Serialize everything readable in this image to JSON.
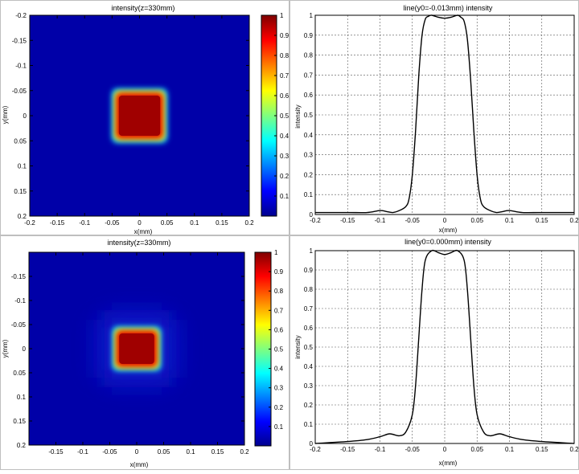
{
  "chart_data": [
    {
      "type": "heatmap",
      "title": "intensity(z=330mm)",
      "xlabel": "x(mm)",
      "ylabel": "y(mm)",
      "xlim": [
        -0.2,
        0.2
      ],
      "ylim": [
        -0.2,
        0.2
      ],
      "y_reversed": true,
      "xticks": [
        "-0.2",
        "-0.15",
        "-0.1",
        "-0.05",
        "0",
        "0.05",
        "0.1",
        "0.15",
        "0.2"
      ],
      "yticks": [
        "-0.2",
        "-0.15",
        "-0.1",
        "-0.05",
        "0",
        "0.05",
        "0.1",
        "0.15",
        "0.2"
      ],
      "square": {
        "x_min": -0.045,
        "x_max": 0.045,
        "y_min": -0.048,
        "y_max": 0.048,
        "value": 1.0
      },
      "background_value": 0.0,
      "colormap": "jet",
      "colorbar_ticks": [
        "0.1",
        "0.2",
        "0.3",
        "0.4",
        "0.5",
        "0.6",
        "0.7",
        "0.8",
        "0.9",
        "1"
      ]
    },
    {
      "type": "line",
      "title": "line(y0=-0.013mm) intensity",
      "xlabel": "x(mm)",
      "ylabel": "intensity",
      "xlim": [
        -0.2,
        0.2
      ],
      "ylim": [
        0,
        1
      ],
      "grid": true,
      "xticks": [
        "-0.2",
        "-0.15",
        "-0.1",
        "-0.05",
        "0",
        "0.05",
        "0.1",
        "0.15",
        "0.2"
      ],
      "yticks": [
        "0",
        "0.1",
        "0.2",
        "0.3",
        "0.4",
        "0.5",
        "0.6",
        "0.7",
        "0.8",
        "0.9",
        "1"
      ],
      "x": [
        -0.2,
        -0.15,
        -0.12,
        -0.1,
        -0.09,
        -0.08,
        -0.07,
        -0.06,
        -0.055,
        -0.05,
        -0.045,
        -0.04,
        -0.035,
        -0.03,
        -0.025,
        -0.02,
        -0.01,
        0,
        0.01,
        0.02,
        0.025,
        0.03,
        0.035,
        0.04,
        0.045,
        0.05,
        0.055,
        0.06,
        0.07,
        0.08,
        0.09,
        0.1,
        0.12,
        0.15,
        0.2
      ],
      "y": [
        0.01,
        0.01,
        0.01,
        0.02,
        0.015,
        0.01,
        0.02,
        0.04,
        0.08,
        0.2,
        0.42,
        0.7,
        0.9,
        0.98,
        0.995,
        1.0,
        0.99,
        0.985,
        0.99,
        1.0,
        0.99,
        0.97,
        0.88,
        0.68,
        0.42,
        0.2,
        0.08,
        0.04,
        0.02,
        0.01,
        0.015,
        0.02,
        0.01,
        0.01,
        0.01
      ]
    },
    {
      "type": "heatmap",
      "title": "intensity(z=330mm)",
      "xlabel": "x(mm)",
      "ylabel": "y(mm)",
      "xlim": [
        -0.2,
        0.2
      ],
      "ylim": [
        -0.2,
        0.2
      ],
      "y_reversed": true,
      "xticks": [
        "-0.15",
        "-0.1",
        "-0.05",
        "0",
        "0.05",
        "0.1",
        "0.15",
        "0.2"
      ],
      "yticks": [
        "-0.15",
        "-0.1",
        "-0.05",
        "0",
        "0.05",
        "0.1",
        "0.15",
        "0.2"
      ],
      "square": {
        "x_min": -0.04,
        "x_max": 0.04,
        "y_min": -0.04,
        "y_max": 0.04,
        "value": 1.0
      },
      "background_value": 0.0,
      "colormap": "jet",
      "colorbar_ticks": [
        "0.1",
        "0.2",
        "0.3",
        "0.4",
        "0.5",
        "0.6",
        "0.7",
        "0.8",
        "0.9",
        "1"
      ]
    },
    {
      "type": "line",
      "title": "line(y0=0.000mm) intensity",
      "xlabel": "x(mm)",
      "ylabel": "intensity",
      "xlim": [
        -0.2,
        0.2
      ],
      "ylim": [
        0,
        1
      ],
      "grid": true,
      "xticks": [
        "-0.2",
        "-0.15",
        "-0.1",
        "-0.05",
        "0",
        "0.05",
        "0.1",
        "0.15",
        "0.2"
      ],
      "yticks": [
        "0",
        "0.1",
        "0.2",
        "0.3",
        "0.4",
        "0.5",
        "0.6",
        "0.7",
        "0.8",
        "0.9",
        "1"
      ],
      "x": [
        -0.2,
        -0.15,
        -0.12,
        -0.1,
        -0.085,
        -0.07,
        -0.06,
        -0.05,
        -0.045,
        -0.04,
        -0.035,
        -0.03,
        -0.02,
        -0.01,
        0,
        0.01,
        0.02,
        0.03,
        0.035,
        0.04,
        0.045,
        0.05,
        0.06,
        0.07,
        0.085,
        0.1,
        0.12,
        0.15,
        0.2
      ],
      "y": [
        0.0,
        0.01,
        0.02,
        0.035,
        0.05,
        0.04,
        0.06,
        0.15,
        0.3,
        0.55,
        0.8,
        0.95,
        1.0,
        0.99,
        0.98,
        0.99,
        1.0,
        0.95,
        0.8,
        0.55,
        0.3,
        0.15,
        0.06,
        0.04,
        0.05,
        0.035,
        0.02,
        0.01,
        0.0
      ]
    }
  ]
}
